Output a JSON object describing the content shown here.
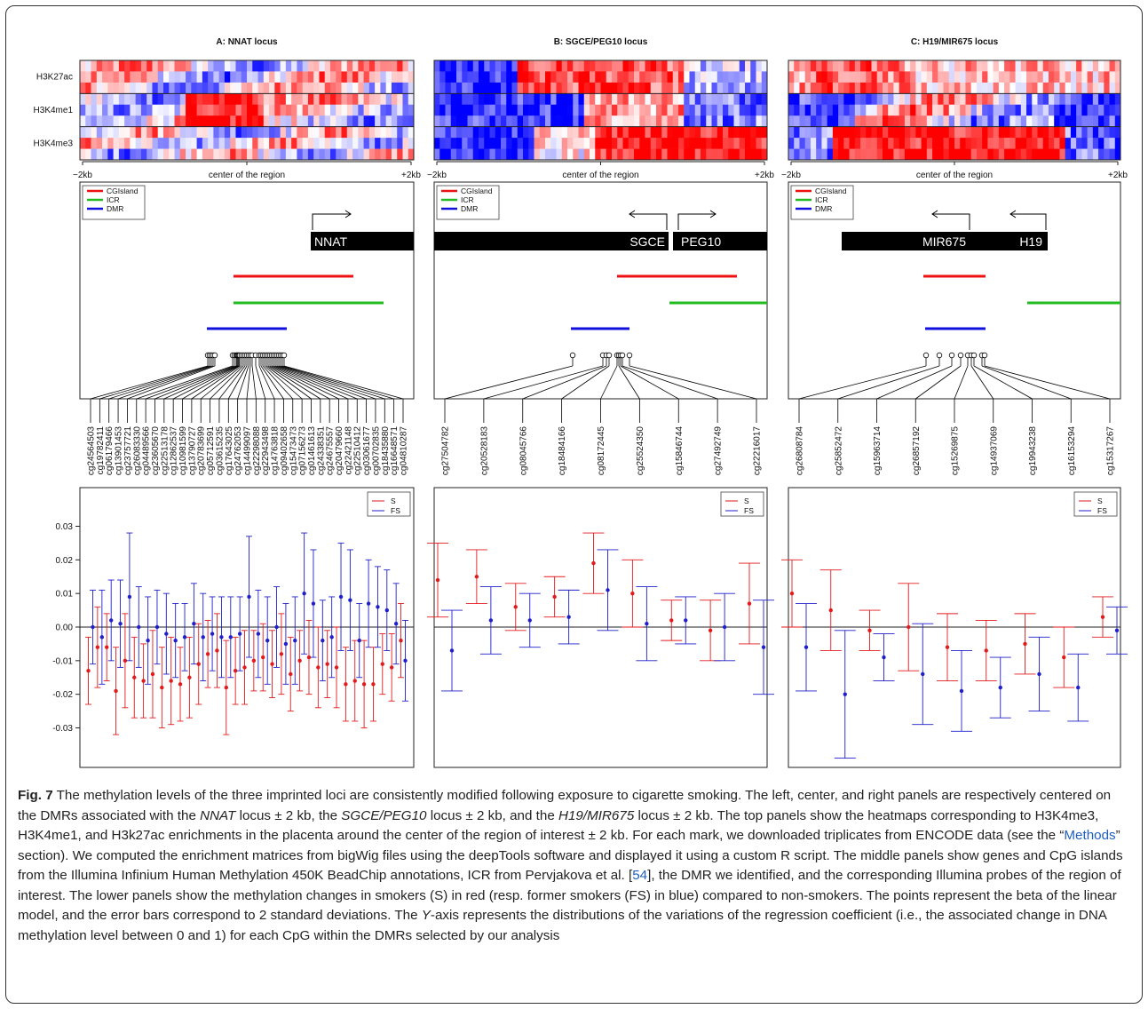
{
  "figure": {
    "panels": [
      {
        "id": "A",
        "title": "A: NNAT locus",
        "x_axis": {
          "left": "−2kb",
          "center": "center of the region",
          "right": "+2kb"
        },
        "marks": [
          "H3K27ac",
          "H3K4me1",
          "H3K4me3"
        ],
        "legend": [
          "CGIsland",
          "ICR",
          "DMR"
        ],
        "genes": [
          {
            "name": "NNAT",
            "strand": "+"
          }
        ],
        "probes": [
          "cg24564503",
          "cg19782411",
          "cg06179466",
          "cg13901453",
          "cg23757721",
          "cg26083330",
          "cg04489566",
          "cg23605670",
          "cg22513178",
          "cg12862537",
          "cg10981599",
          "cg13790727",
          "cg20783699",
          "cg05712591",
          "cg03615235",
          "cg17643025",
          "cg24762053",
          "cg14499097",
          "cg22298088",
          "cg22943498",
          "cg14763818",
          "cg09402658",
          "cg15473473",
          "cg07156273",
          "cg01461613",
          "cg24338351",
          "cg24675557",
          "cg20479660",
          "cg22421148",
          "cg22510412",
          "cg03061677",
          "cg00702835",
          "cg18435880",
          "cg16648571",
          "cg04810287"
        ]
      },
      {
        "id": "B",
        "title": "B: SGCE/PEG10 locus",
        "x_axis": {
          "left": "−2kb",
          "center": "center of the region",
          "right": "+2kb"
        },
        "legend": [
          "CGIsland",
          "ICR",
          "DMR"
        ],
        "genes": [
          {
            "name": "SGCE",
            "strand": "-"
          },
          {
            "name": "PEG10",
            "strand": "+"
          }
        ],
        "probes": [
          "cg27504782",
          "cg20528183",
          "cg08045766",
          "cg18484166",
          "cg08172445",
          "cg25524350",
          "cg15846744",
          "cg27492749",
          "cg22216017"
        ]
      },
      {
        "id": "C",
        "title": "C: H19/MIR675 locus",
        "x_axis": {
          "left": "−2kb",
          "center": "center of the region",
          "right": "+2kb"
        },
        "legend": [
          "CGIsland",
          "ICR",
          "DMR"
        ],
        "genes": [
          {
            "name": "MIR675",
            "strand": "-"
          },
          {
            "name": "H19",
            "strand": "-"
          }
        ],
        "probes": [
          "cg26808784",
          "cg25852472",
          "cg15963714",
          "cg26857192",
          "cg15269875",
          "cg14937069",
          "cg19943238",
          "cg16153294",
          "cg15317267"
        ]
      }
    ],
    "series_legend": [
      "S",
      "FS"
    ],
    "colors": {
      "S": "#e31a1c",
      "FS": "#1f1fcc",
      "CGIsland": "#ee1111",
      "ICR": "#22bb22",
      "DMR": "#1111dd",
      "heat_high": "#ff0000",
      "heat_low": "#0000ff"
    }
  },
  "chart_data": [
    {
      "type": "scatter",
      "panel": "A",
      "ylim": [
        -0.037,
        0.037
      ],
      "yticks": [
        -0.03,
        -0.02,
        -0.01,
        0.0,
        0.01,
        0.02,
        0.03
      ],
      "ytick_labels": [
        "-0.03",
        "-0.02",
        "-0.01",
        "0.00",
        "0.01",
        "0.02",
        "0.03"
      ],
      "series": [
        {
          "name": "S",
          "values": [
            -0.013,
            -0.006,
            -0.006,
            -0.019,
            -0.01,
            -0.015,
            -0.016,
            -0.014,
            -0.018,
            -0.016,
            -0.017,
            -0.015,
            -0.011,
            -0.008,
            -0.007,
            -0.018,
            -0.013,
            -0.012,
            -0.01,
            -0.009,
            -0.011,
            -0.008,
            -0.014,
            -0.01,
            -0.009,
            -0.012,
            -0.011,
            -0.012,
            -0.017,
            -0.016,
            -0.017,
            -0.017,
            -0.011,
            -0.012,
            -0.004
          ],
          "err": [
            0.01,
            0.012,
            0.01,
            0.013,
            0.014,
            0.012,
            0.011,
            0.013,
            0.012,
            0.013,
            0.011,
            0.012,
            0.012,
            0.01,
            0.011,
            0.014,
            0.01,
            0.011,
            0.009,
            0.01,
            0.01,
            0.012,
            0.011,
            0.009,
            0.011,
            0.012,
            0.01,
            0.012,
            0.011,
            0.012,
            0.013,
            0.011,
            0.009,
            0.01,
            0.011
          ]
        },
        {
          "name": "FS",
          "values": [
            0.0,
            -0.003,
            0.002,
            0.001,
            0.009,
            0.0,
            -0.004,
            0.0,
            -0.002,
            -0.004,
            -0.003,
            0.001,
            -0.003,
            -0.002,
            -0.003,
            -0.003,
            -0.002,
            0.009,
            -0.002,
            -0.004,
            0.0,
            -0.005,
            -0.004,
            0.01,
            0.007,
            -0.004,
            -0.003,
            0.009,
            0.008,
            -0.004,
            0.007,
            0.006,
            0.005,
            0.001,
            -0.01
          ],
          "err": [
            0.011,
            0.014,
            0.012,
            0.013,
            0.019,
            0.012,
            0.013,
            0.011,
            0.012,
            0.011,
            0.01,
            0.012,
            0.013,
            0.011,
            0.012,
            0.012,
            0.011,
            0.018,
            0.013,
            0.013,
            0.012,
            0.012,
            0.013,
            0.018,
            0.016,
            0.012,
            0.012,
            0.016,
            0.015,
            0.011,
            0.013,
            0.012,
            0.012,
            0.012,
            0.012
          ]
        }
      ]
    },
    {
      "type": "scatter",
      "panel": "B",
      "ylim": [
        -0.037,
        0.037
      ],
      "series": [
        {
          "name": "S",
          "values": [
            0.014,
            0.015,
            0.006,
            0.009,
            0.019,
            0.01,
            0.002,
            -0.001,
            0.007
          ],
          "err": [
            0.011,
            0.008,
            0.007,
            0.006,
            0.009,
            0.01,
            0.006,
            0.009,
            0.012
          ]
        },
        {
          "name": "FS",
          "values": [
            -0.007,
            0.002,
            0.002,
            0.003,
            0.011,
            0.001,
            0.002,
            0.0,
            -0.006
          ],
          "err": [
            0.012,
            0.01,
            0.008,
            0.008,
            0.012,
            0.011,
            0.007,
            0.01,
            0.014
          ]
        }
      ]
    },
    {
      "type": "scatter",
      "panel": "C",
      "ylim": [
        -0.037,
        0.037
      ],
      "series": [
        {
          "name": "S",
          "values": [
            0.01,
            0.005,
            -0.001,
            0.0,
            -0.006,
            -0.007,
            -0.005,
            -0.009,
            0.003
          ],
          "err": [
            0.01,
            0.012,
            0.006,
            0.013,
            0.01,
            0.009,
            0.009,
            0.009,
            0.006
          ]
        },
        {
          "name": "FS",
          "values": [
            -0.006,
            -0.02,
            -0.009,
            -0.014,
            -0.019,
            -0.018,
            -0.014,
            -0.018,
            -0.001
          ],
          "err": [
            0.013,
            0.019,
            0.007,
            0.015,
            0.012,
            0.009,
            0.011,
            0.01,
            0.007
          ]
        }
      ]
    }
  ],
  "caption": {
    "label": "Fig. 7",
    "segments": [
      {
        "t": " The methylation levels of the three imprinted loci are consistently modified following exposure to cigarette smoking. The left, center, and right panels are respectively centered on the DMRs associated with the ",
        "s": ""
      },
      {
        "t": "NNAT",
        "s": "i"
      },
      {
        "t": " locus ± 2 kb, the ",
        "s": ""
      },
      {
        "t": "SGCE/PEG10",
        "s": "i"
      },
      {
        "t": " locus ± 2 kb, and the ",
        "s": ""
      },
      {
        "t": "H19/MIR675",
        "s": "i"
      },
      {
        "t": " locus ± 2 kb. The top panels show the heatmaps corresponding to H3K4me3, H3K4me1, and H3k27ac enrichments in the placenta around the center of the region of interest ± 2 kb. For each mark, we downloaded triplicates from ENCODE data (see the “",
        "s": ""
      },
      {
        "t": "Methods",
        "s": "link"
      },
      {
        "t": "” section). We computed the enrichment matrices from bigWig files using the deepTools software and displayed it using a custom R script. The middle panels show genes and CpG islands from the Illumina Infinium Human Methylation 450K BeadChip annotations, ICR from Pervjakova et al. [",
        "s": ""
      },
      {
        "t": "54",
        "s": "link"
      },
      {
        "t": "], the DMR we identified, and the corresponding Illumina probes of the region of interest. The lower panels show the methylation changes in smokers (S) in red (resp. former smokers (FS) in blue) compared to non-smokers. The points represent the beta of the linear model, and the error bars correspond to 2 standard deviations. The ",
        "s": ""
      },
      {
        "t": "Y",
        "s": "i"
      },
      {
        "t": "-axis represents the distributions of the variations of the regression coefficient (i.e., the associated change in DNA methylation level between 0 and 1) for each CpG within the DMRs selected by our analysis",
        "s": ""
      }
    ]
  }
}
